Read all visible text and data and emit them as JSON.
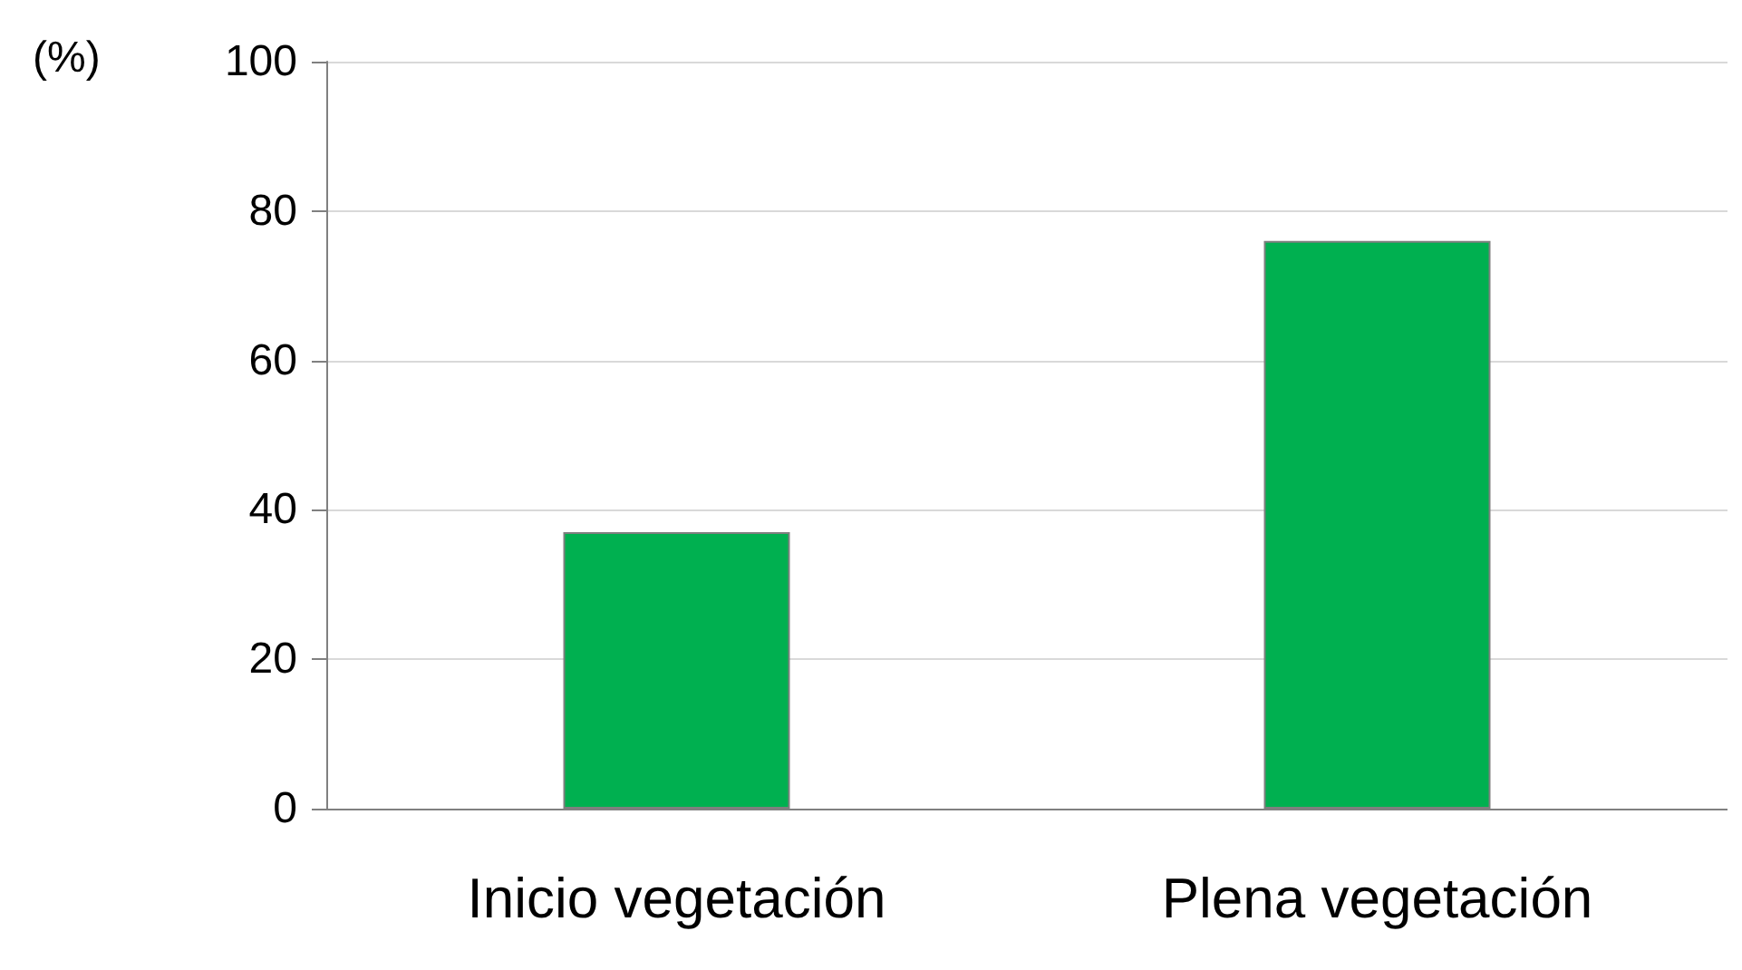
{
  "chart_data": {
    "type": "bar",
    "ylabel": "(%)",
    "categories": [
      "Inicio vegetación",
      "Plena vegetación"
    ],
    "values": [
      37,
      76
    ],
    "color": "#00b050",
    "ylim": [
      0,
      100
    ],
    "yticks": [
      0,
      20,
      40,
      60,
      80,
      100
    ],
    "grid": "y"
  }
}
